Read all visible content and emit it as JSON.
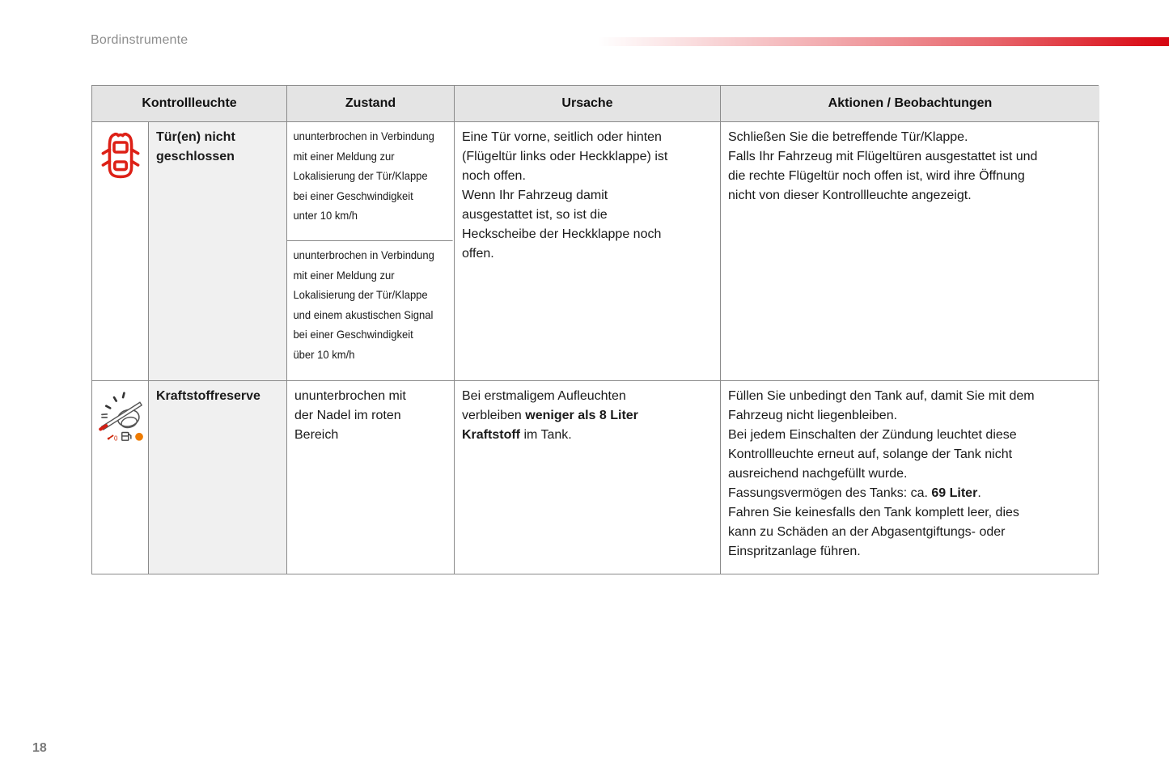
{
  "page": {
    "title": "Bordinstrumente",
    "number": "18"
  },
  "colors": {
    "accent_red": "#da101a",
    "warning_icon_red": "#dd2016",
    "fuel_dot_orange": "#ee7b00",
    "table_border_gray": "#8a8a8a",
    "header_bg": "#e4e4e4",
    "name_cell_bg": "#f0f0f0",
    "title_gray": "#8d8d8d"
  },
  "table": {
    "headers": {
      "kontrollleuchte": "Kontrollleuchte",
      "zustand": "Zustand",
      "ursache": "Ursache",
      "aktionen": "Aktionen / Beobachtungen"
    },
    "rows": [
      {
        "icon": "open-door-warning",
        "name": "Tür(en) nicht\ngeschlossen",
        "zustand_1": "ununterbrochen in Verbindung\nmit einer Meldung zur\nLokalisierung der Tür/Klappe\nbei einer Geschwindigkeit\nunter 10 km/h",
        "zustand_2": "ununterbrochen in Verbindung\nmit einer Meldung zur\nLokalisierung der Tür/Klappe\nund einem akustischen Signal\nbei einer Geschwindigkeit\nüber 10 km/h",
        "ursache": "Eine Tür vorne, seitlich oder hinten\n(Flügeltür links oder Heckklappe) ist\nnoch offen.\nWenn Ihr Fahrzeug damit\nausgestattet ist, so ist die\nHeckscheibe der Heckklappe noch\noffen.",
        "aktionen": "Schließen Sie die betreffende Tür/Klappe.\nFalls Ihr Fahrzeug mit Flügeltüren ausgestattet ist und\ndie rechte Flügeltür noch offen ist, wird ihre Öffnung\nnicht von dieser Kontrollleuchte angezeigt."
      },
      {
        "icon": "fuel-gauge-reserve",
        "name": "Kraftstoffreserve",
        "zustand": "ununterbrochen mit\nder Nadel im roten\nBereich",
        "ursache_rich": [
          {
            "t": "Bei erstmaligem Aufleuchten\nverbleiben ",
            "b": false
          },
          {
            "t": "weniger als 8 Liter\nKraftstoff",
            "b": true
          },
          {
            "t": " im Tank.",
            "b": false
          }
        ],
        "aktionen_rich": [
          {
            "t": "Füllen Sie unbedingt den Tank auf, damit Sie mit dem\nFahrzeug nicht liegenbleiben.\nBei jedem Einschalten der Zündung leuchtet diese\nKontrollleuchte erneut auf, solange der Tank nicht\nausreichend nachgefüllt wurde.\nFassungsvermögen des Tanks: ca. ",
            "b": false
          },
          {
            "t": "69 Liter",
            "b": true
          },
          {
            "t": ".\nFahren Sie keinesfalls den Tank komplett leer, dies\nkann zu Schäden an der Abgasentgiftungs- oder\nEinspritzanlage führen.",
            "b": false
          }
        ]
      }
    ]
  }
}
